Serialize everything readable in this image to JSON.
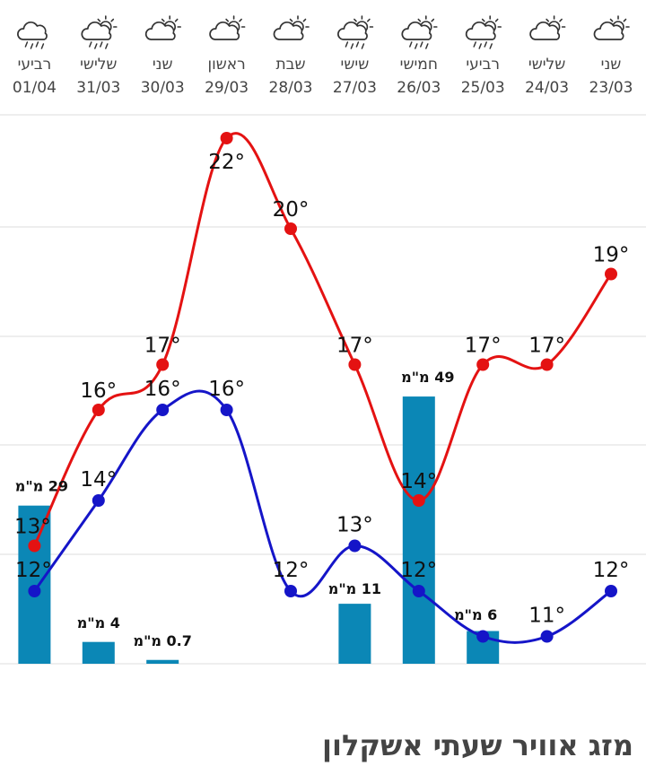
{
  "page": {
    "title": "מזג אוויר שעתי אשקלון"
  },
  "colors": {
    "high": "#e41212",
    "low": "#1515c8",
    "rain": "#0b87b6",
    "grid": "#dedede"
  },
  "chart_data": {
    "type": "line",
    "title": "",
    "categories": [
      "23/03",
      "24/03",
      "25/03",
      "26/03",
      "27/03",
      "28/03",
      "29/03",
      "30/03",
      "31/03",
      "01/04"
    ],
    "day_names": [
      "שני",
      "שלישי",
      "רביעי",
      "חמישי",
      "שישי",
      "שבת",
      "ראשון",
      "שני",
      "שלישי",
      "רביעי"
    ],
    "icons": [
      "partly-cloudy-icon",
      "partly-cloudy-icon",
      "rain-cloud-sun-icon",
      "rain-cloud-sun-icon",
      "rain-cloud-sun-icon",
      "partly-cloudy-icon",
      "partly-cloudy-icon",
      "partly-cloudy-icon",
      "rain-cloud-sun-icon",
      "rain-cloud-icon"
    ],
    "ylim": [
      8,
      25
    ],
    "rain_ylim": [
      0,
      100
    ],
    "grid": true,
    "series": [
      {
        "key": "high",
        "values": [
          19,
          17,
          17,
          14,
          17,
          20,
          22,
          17,
          16,
          13
        ]
      },
      {
        "key": "low",
        "values": [
          12,
          11,
          11,
          12,
          13,
          12,
          16,
          16,
          14,
          12
        ]
      },
      {
        "key": "rain",
        "type": "bar",
        "unit": "מ\"מ",
        "values": [
          0,
          0,
          6,
          49,
          11,
          0,
          0,
          0.7,
          4,
          29
        ],
        "labels": [
          "",
          "",
          "6 מ\"מ",
          "49 מ\"מ",
          "11 מ\"מ",
          "",
          "",
          "0.7 מ\"מ",
          "4 מ\"מ",
          "29 מ\"מ"
        ]
      }
    ],
    "temp_labels": {
      "high": [
        "19°",
        "17°",
        "17°",
        "14°",
        "17°",
        "20°",
        "22°",
        "17°",
        "16°",
        "13°"
      ],
      "low": [
        "12°",
        "11°",
        "",
        "12°",
        "13°",
        "12°",
        "16°",
        "16°",
        "14°",
        "12°"
      ]
    }
  }
}
